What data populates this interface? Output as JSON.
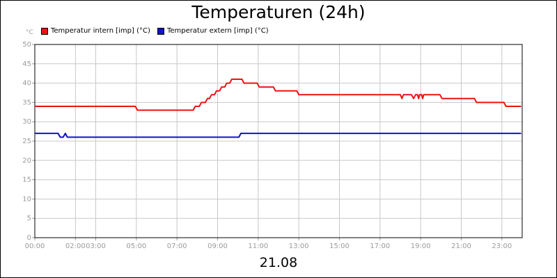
{
  "chart_data": {
    "type": "line",
    "title": "Temperaturen (24h)",
    "ylabel": "°C",
    "xlabel": "21.08",
    "ylim": [
      0,
      50
    ],
    "yticks": [
      0,
      5,
      10,
      15,
      20,
      25,
      30,
      35,
      40,
      45,
      50
    ],
    "xlim": [
      0,
      24
    ],
    "xticks": [
      {
        "h": 0,
        "label": "00:00"
      },
      {
        "h": 2,
        "label": "02:00"
      },
      {
        "h": 3,
        "label": "03:00"
      },
      {
        "h": 5,
        "label": "05:00"
      },
      {
        "h": 7,
        "label": "07:00"
      },
      {
        "h": 9,
        "label": "09:00"
      },
      {
        "h": 11,
        "label": "11:00"
      },
      {
        "h": 13,
        "label": "13:00"
      },
      {
        "h": 15,
        "label": "15:00"
      },
      {
        "h": 17,
        "label": "17:00"
      },
      {
        "h": 19,
        "label": "19:00"
      },
      {
        "h": 21,
        "label": "21:00"
      },
      {
        "h": 23,
        "label": "23:00"
      }
    ],
    "grid": true,
    "legend_position": "top-left",
    "series": [
      {
        "name": "Temperatur intern [imp] (°C)",
        "color": "#ee1111",
        "points": [
          [
            0,
            34
          ],
          [
            4.95,
            34
          ],
          [
            5.05,
            33
          ],
          [
            7.8,
            33
          ],
          [
            7.9,
            34
          ],
          [
            8.1,
            34
          ],
          [
            8.2,
            35
          ],
          [
            8.4,
            35
          ],
          [
            8.5,
            36
          ],
          [
            8.6,
            36
          ],
          [
            8.7,
            37
          ],
          [
            8.85,
            37
          ],
          [
            8.95,
            38
          ],
          [
            9.1,
            38
          ],
          [
            9.2,
            39
          ],
          [
            9.35,
            39
          ],
          [
            9.45,
            40
          ],
          [
            9.6,
            40
          ],
          [
            9.7,
            41
          ],
          [
            10.2,
            41
          ],
          [
            10.3,
            40
          ],
          [
            10.95,
            40
          ],
          [
            11.05,
            39
          ],
          [
            11.75,
            39
          ],
          [
            11.85,
            38
          ],
          [
            12.9,
            38
          ],
          [
            13.0,
            37
          ],
          [
            18.0,
            37
          ],
          [
            18.08,
            36
          ],
          [
            18.15,
            37
          ],
          [
            18.55,
            37
          ],
          [
            18.65,
            36
          ],
          [
            18.75,
            37
          ],
          [
            18.85,
            37
          ],
          [
            18.9,
            36
          ],
          [
            18.95,
            37
          ],
          [
            19.05,
            37
          ],
          [
            19.1,
            36
          ],
          [
            19.15,
            37
          ],
          [
            19.95,
            37
          ],
          [
            20.05,
            36
          ],
          [
            21.65,
            36
          ],
          [
            21.75,
            35
          ],
          [
            23.1,
            35
          ],
          [
            23.2,
            34
          ],
          [
            23.95,
            34
          ]
        ]
      },
      {
        "name": "Temperatur extern [imp] (°C)",
        "color": "#1111cc",
        "points": [
          [
            0,
            27
          ],
          [
            1.15,
            27
          ],
          [
            1.25,
            26
          ],
          [
            1.4,
            26
          ],
          [
            1.5,
            27
          ],
          [
            1.6,
            26
          ],
          [
            10.05,
            26
          ],
          [
            10.15,
            27
          ],
          [
            23.95,
            27
          ]
        ]
      }
    ]
  }
}
